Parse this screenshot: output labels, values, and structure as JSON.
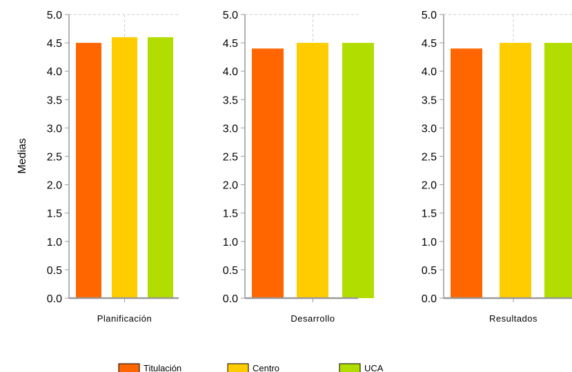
{
  "chart_data": {
    "type": "bar",
    "ylabel": "Medias",
    "ylim": [
      0,
      5
    ],
    "yticks": [
      "0.0",
      "0.5",
      "1.0",
      "1.5",
      "2.0",
      "2.5",
      "3.0",
      "3.5",
      "4.0",
      "4.5",
      "5.0"
    ],
    "grid": "dashed vertical at category centers and horizontal at top",
    "legend_position": "bottom",
    "series": [
      {
        "name": "Titulación",
        "color": "#ff6600"
      },
      {
        "name": "Centro",
        "color": "#ffcc00"
      },
      {
        "name": "UCA",
        "color": "#b2dd00"
      }
    ],
    "panels": [
      {
        "category": "Planificación",
        "values": [
          4.5,
          4.6,
          4.6
        ]
      },
      {
        "category": "Desarrollo",
        "values": [
          4.4,
          4.5,
          4.5
        ]
      },
      {
        "category": "Resultados",
        "values": [
          4.4,
          4.5,
          4.5
        ]
      }
    ]
  }
}
